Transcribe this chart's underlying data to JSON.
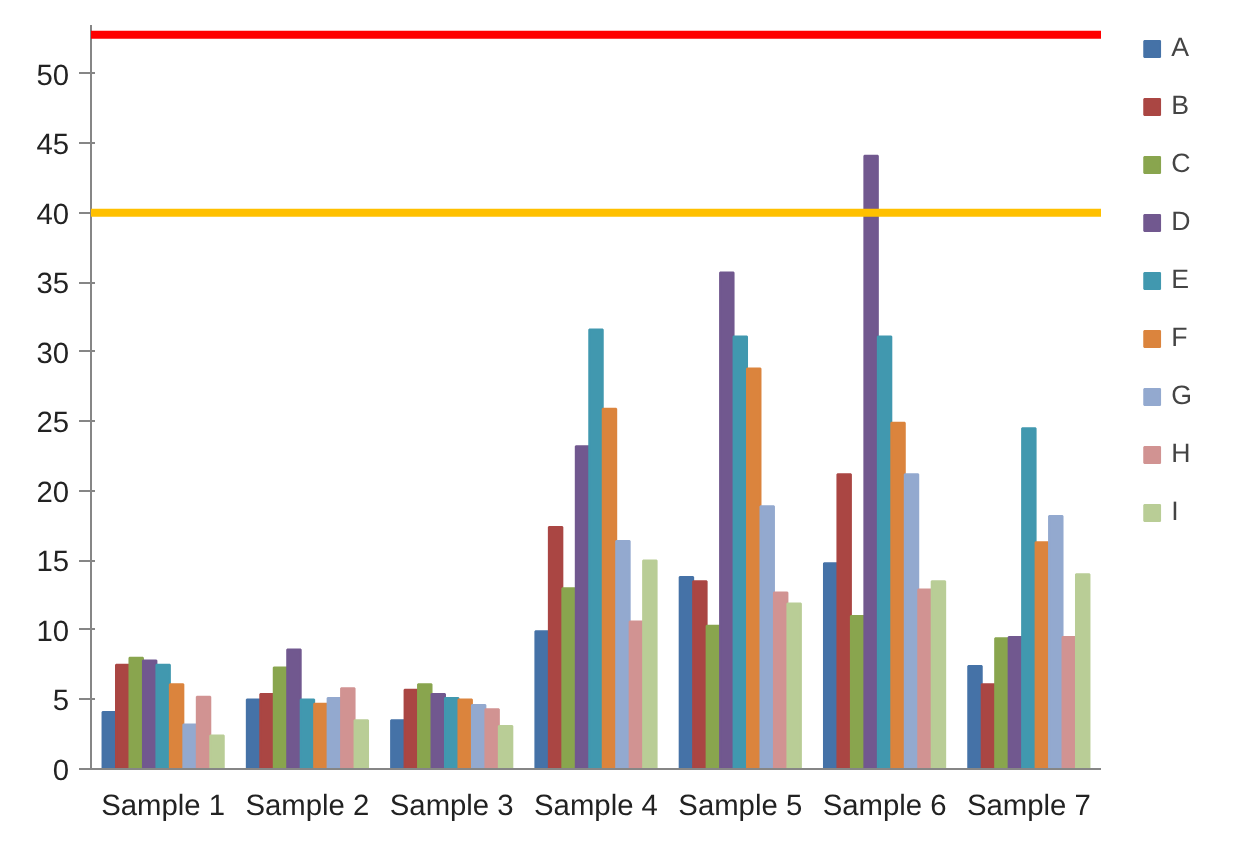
{
  "chart_data": {
    "type": "bar",
    "categories": [
      "Sample 1",
      "Sample 2",
      "Sample 3",
      "Sample 4",
      "Sample 5",
      "Sample 6",
      "Sample 7"
    ],
    "series": [
      {
        "name": "A",
        "color": "#4572a7",
        "values": [
          4.1,
          5.0,
          3.5,
          9.9,
          13.8,
          14.8,
          7.4
        ]
      },
      {
        "name": "B",
        "color": "#aa4643",
        "values": [
          7.5,
          5.4,
          5.7,
          17.4,
          13.5,
          21.2,
          6.1
        ]
      },
      {
        "name": "C",
        "color": "#89a54e",
        "values": [
          8.0,
          7.3,
          6.1,
          13.0,
          10.3,
          11.0,
          9.4
        ]
      },
      {
        "name": "D",
        "color": "#71588f",
        "values": [
          7.8,
          8.6,
          5.4,
          23.2,
          35.7,
          44.1,
          9.5
        ]
      },
      {
        "name": "E",
        "color": "#4198af",
        "values": [
          7.5,
          5.0,
          5.1,
          31.6,
          31.1,
          31.1,
          24.5
        ]
      },
      {
        "name": "F",
        "color": "#db843d",
        "values": [
          6.1,
          4.7,
          5.0,
          25.9,
          28.8,
          24.9,
          16.3
        ]
      },
      {
        "name": "G",
        "color": "#93a9cf",
        "values": [
          3.2,
          5.1,
          4.6,
          16.4,
          18.9,
          21.2,
          18.2
        ]
      },
      {
        "name": "H",
        "color": "#d19392",
        "values": [
          5.2,
          5.8,
          4.3,
          10.6,
          12.7,
          12.9,
          9.5
        ]
      },
      {
        "name": "I",
        "color": "#b9cd96",
        "values": [
          2.4,
          3.5,
          3.1,
          15.0,
          11.9,
          13.5,
          14.0
        ]
      }
    ],
    "ylim": [
      0,
      53.5
    ],
    "yticks": [
      0,
      5,
      10,
      15,
      20,
      25,
      30,
      35,
      40,
      45,
      50
    ],
    "ref_lines": [
      {
        "axis": "y",
        "value": 52.8,
        "color": "#ff0000"
      },
      {
        "axis": "y",
        "value": 40,
        "color": "#ffc000"
      }
    ],
    "grid": false,
    "legend": "right"
  }
}
